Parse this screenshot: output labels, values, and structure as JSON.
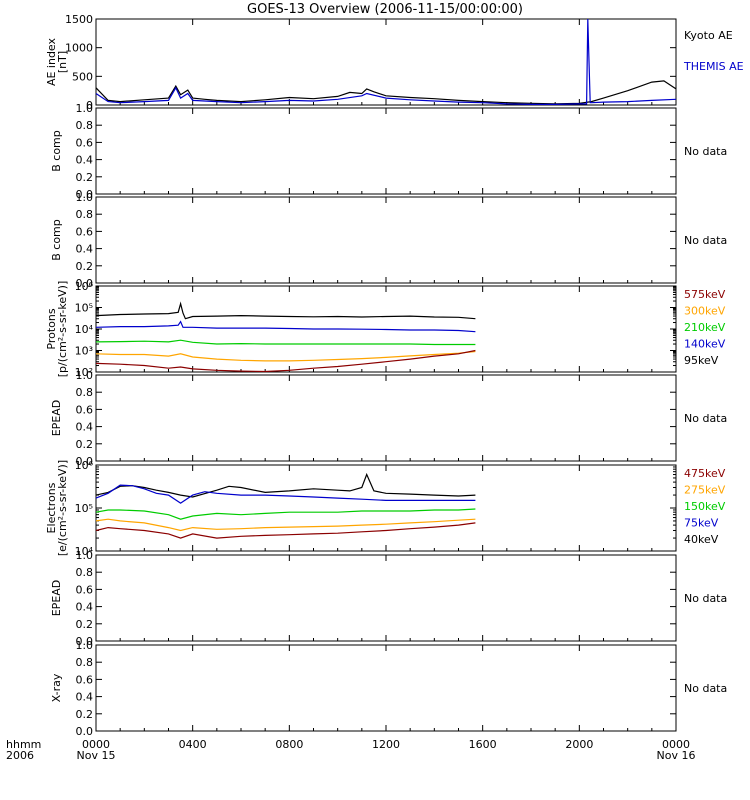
{
  "title": "GOES-13 Overview (2006-11-15/00:00:00)",
  "time_axis": {
    "row1_label": "hhmm",
    "row2_label": "2006",
    "ticks": [
      {
        "hour": 0,
        "label": "0000",
        "sub": "Nov 15"
      },
      {
        "hour": 4,
        "label": "0400",
        "sub": ""
      },
      {
        "hour": 8,
        "label": "0800",
        "sub": ""
      },
      {
        "hour": 12,
        "label": "1200",
        "sub": ""
      },
      {
        "hour": 16,
        "label": "1600",
        "sub": ""
      },
      {
        "hour": 20,
        "label": "2000",
        "sub": ""
      },
      {
        "hour": 24,
        "label": "0000",
        "sub": "Nov 16"
      }
    ]
  },
  "chart_data": [
    {
      "type": "line",
      "ylabel_lines": [
        "AE index",
        "[nT]"
      ],
      "yscale": "linear",
      "ylim": [
        0,
        1500
      ],
      "yticks": [
        "0",
        "500",
        "1000",
        "1500"
      ],
      "ytick_values": [
        0,
        500,
        1000,
        1500
      ],
      "status": "",
      "series": [
        {
          "name": "Kyoto AE",
          "color": "#000000",
          "x": [
            0,
            0.5,
            1,
            2,
            3,
            3.3,
            3.5,
            3.8,
            4,
            4.5,
            5,
            6,
            7,
            8,
            9,
            10,
            10.5,
            11,
            11.2,
            11.5,
            12,
            13,
            14,
            15,
            16,
            17,
            18,
            19,
            20,
            20.5,
            21,
            22,
            23,
            23.5,
            24
          ],
          "y": [
            300,
            80,
            60,
            90,
            120,
            330,
            180,
            260,
            120,
            100,
            80,
            60,
            90,
            130,
            110,
            150,
            220,
            200,
            280,
            230,
            160,
            130,
            110,
            80,
            60,
            40,
            30,
            20,
            30,
            60,
            120,
            250,
            400,
            420,
            280
          ]
        },
        {
          "name": "THEMIS AE",
          "color": "#0000cc",
          "x": [
            0,
            0.5,
            1,
            2,
            3,
            3.3,
            3.5,
            3.8,
            4,
            5,
            6,
            7,
            8,
            9,
            10,
            11,
            11.2,
            12,
            13,
            14,
            15,
            16,
            17,
            18,
            19,
            20,
            20.3,
            20.35,
            20.4,
            20.45,
            20.5,
            21,
            22,
            23,
            24
          ],
          "y": [
            200,
            60,
            40,
            60,
            80,
            300,
            120,
            200,
            80,
            60,
            40,
            60,
            80,
            70,
            100,
            160,
            200,
            120,
            90,
            70,
            50,
            40,
            20,
            10,
            10,
            20,
            20,
            1500,
            760,
            40,
            40,
            50,
            60,
            80,
            100
          ]
        }
      ]
    },
    {
      "type": "line",
      "ylabel_lines": [
        "B comp"
      ],
      "yscale": "linear",
      "ylim": [
        0,
        1
      ],
      "yticks": [
        "0.0",
        "0.2",
        "0.4",
        "0.6",
        "0.8",
        "1.0"
      ],
      "ytick_values": [
        0,
        0.2,
        0.4,
        0.6,
        0.8,
        1.0
      ],
      "status": "No data",
      "series": []
    },
    {
      "type": "line",
      "ylabel_lines": [
        "B comp"
      ],
      "yscale": "linear",
      "ylim": [
        0,
        1
      ],
      "yticks": [
        "0.0",
        "0.2",
        "0.4",
        "0.6",
        "0.8",
        "1.0"
      ],
      "ytick_values": [
        0,
        0.2,
        0.4,
        0.6,
        0.8,
        1.0
      ],
      "status": "No data",
      "series": []
    },
    {
      "type": "line",
      "ylabel_lines": [
        "Protons",
        "[p/(cm²-s-sr-keV)]"
      ],
      "yscale": "log",
      "ylim": [
        100,
        1000000
      ],
      "yticks": [
        "10²",
        "10³",
        "10⁴",
        "10⁵",
        "10⁶"
      ],
      "ytick_values": [
        100,
        1000,
        10000,
        100000,
        1000000
      ],
      "status": "",
      "series": [
        {
          "name": "95keV",
          "color": "#000000",
          "x": [
            0,
            1,
            2,
            3,
            3.4,
            3.5,
            3.6,
            3.7,
            4,
            5,
            6,
            7,
            8,
            9,
            10,
            11,
            12,
            13,
            14,
            15,
            15.7
          ],
          "y": [
            42000,
            47000,
            50000,
            52000,
            60000,
            150000,
            55000,
            30000,
            38000,
            40000,
            42000,
            40000,
            38000,
            37000,
            38000,
            36000,
            38000,
            40000,
            36000,
            35000,
            30000
          ]
        },
        {
          "name": "140keV",
          "color": "#0000cc",
          "x": [
            0,
            1,
            2,
            3,
            3.4,
            3.5,
            3.6,
            4,
            5,
            6,
            7,
            8,
            9,
            10,
            11,
            12,
            13,
            14,
            15,
            15.7
          ],
          "y": [
            12000,
            13000,
            13000,
            14000,
            15000,
            22000,
            12000,
            12000,
            11000,
            11000,
            11000,
            10500,
            10000,
            10000,
            9800,
            9500,
            9000,
            9000,
            8500,
            7500
          ]
        },
        {
          "name": "210keV",
          "color": "#00cc00",
          "x": [
            0,
            1,
            2,
            3,
            3.5,
            4,
            5,
            6,
            7,
            8,
            9,
            10,
            11,
            12,
            13,
            14,
            15,
            15.7
          ],
          "y": [
            2500,
            2600,
            2700,
            2500,
            3000,
            2400,
            2000,
            2100,
            2000,
            2000,
            2000,
            2000,
            2000,
            2000,
            2000,
            1900,
            1900,
            1900
          ]
        },
        {
          "name": "300keV",
          "color": "#ffa500",
          "x": [
            0,
            1,
            2,
            3,
            3.5,
            4,
            5,
            6,
            7,
            8,
            9,
            10,
            11,
            12,
            13,
            14,
            15,
            15.7
          ],
          "y": [
            700,
            650,
            650,
            550,
            700,
            500,
            400,
            350,
            330,
            330,
            350,
            380,
            420,
            480,
            560,
            650,
            750,
            900
          ]
        },
        {
          "name": "575keV",
          "color": "#8b0000",
          "x": [
            0,
            1,
            2,
            3,
            3.5,
            4,
            5,
            6,
            7,
            8,
            9,
            10,
            11,
            12,
            13,
            14,
            15,
            15.7
          ],
          "y": [
            250,
            230,
            200,
            150,
            170,
            140,
            120,
            110,
            105,
            120,
            150,
            180,
            230,
            300,
            400,
            550,
            700,
            1000
          ]
        }
      ]
    },
    {
      "type": "line",
      "ylabel_lines": [
        "EPEAD"
      ],
      "yscale": "linear",
      "ylim": [
        0,
        1
      ],
      "yticks": [
        "0.0",
        "0.2",
        "0.4",
        "0.6",
        "0.8",
        "1.0"
      ],
      "ytick_values": [
        0,
        0.2,
        0.4,
        0.6,
        0.8,
        1.0
      ],
      "status": "No data",
      "series": []
    },
    {
      "type": "line",
      "ylabel_lines": [
        "Electrons",
        "[e/(cm²-s-sr-keV)]"
      ],
      "yscale": "log",
      "ylim": [
        10000,
        1000000
      ],
      "yticks": [
        "10⁴",
        "10⁵",
        "10⁶"
      ],
      "ytick_values": [
        10000,
        100000,
        1000000
      ],
      "status": "",
      "series": [
        {
          "name": "40keV",
          "color": "#000000",
          "x": [
            0,
            0.5,
            1,
            1.5,
            2,
            2.5,
            3,
            3.5,
            4,
            5,
            5.5,
            6,
            7,
            8,
            9,
            10,
            10.5,
            11,
            11.2,
            11.5,
            12,
            13,
            14,
            15,
            15.7
          ],
          "y": [
            200000,
            230000,
            320000,
            330000,
            300000,
            260000,
            230000,
            200000,
            180000,
            260000,
            320000,
            300000,
            230000,
            250000,
            280000,
            260000,
            250000,
            300000,
            600000,
            250000,
            220000,
            210000,
            200000,
            190000,
            200000
          ]
        },
        {
          "name": "75keV",
          "color": "#0000cc",
          "x": [
            0,
            0.5,
            1,
            1.5,
            2,
            2.5,
            3,
            3.5,
            4,
            4.5,
            5,
            6,
            7,
            8,
            9,
            10,
            11,
            12,
            13,
            14,
            15,
            15.7
          ],
          "y": [
            170000,
            220000,
            340000,
            330000,
            280000,
            220000,
            200000,
            130000,
            200000,
            240000,
            220000,
            200000,
            200000,
            190000,
            180000,
            170000,
            160000,
            150000,
            150000,
            150000,
            150000,
            150000
          ]
        },
        {
          "name": "150keV",
          "color": "#00cc00",
          "x": [
            0,
            0.5,
            1,
            2,
            3,
            3.5,
            4,
            5,
            6,
            7,
            8,
            9,
            10,
            11,
            12,
            13,
            14,
            15,
            15.7
          ],
          "y": [
            80000,
            90000,
            90000,
            85000,
            70000,
            55000,
            65000,
            75000,
            70000,
            75000,
            80000,
            80000,
            80000,
            85000,
            85000,
            85000,
            90000,
            90000,
            95000
          ]
        },
        {
          "name": "275keV",
          "color": "#ffa500",
          "x": [
            0,
            0.5,
            1,
            2,
            3,
            3.5,
            4,
            5,
            6,
            7,
            8,
            9,
            10,
            11,
            12,
            13,
            14,
            15,
            15.7
          ],
          "y": [
            50000,
            55000,
            50000,
            45000,
            35000,
            30000,
            35000,
            32000,
            33000,
            35000,
            36000,
            37000,
            38000,
            40000,
            42000,
            45000,
            48000,
            52000,
            55000
          ]
        },
        {
          "name": "475keV",
          "color": "#8b0000",
          "x": [
            0,
            0.5,
            1,
            2,
            3,
            3.5,
            4,
            5,
            6,
            7,
            8,
            9,
            10,
            11,
            12,
            13,
            14,
            15,
            15.7
          ],
          "y": [
            30000,
            35000,
            33000,
            30000,
            25000,
            20000,
            25000,
            20000,
            22000,
            23000,
            24000,
            25000,
            26000,
            28000,
            30000,
            33000,
            36000,
            40000,
            45000
          ]
        }
      ]
    },
    {
      "type": "line",
      "ylabel_lines": [
        "EPEAD"
      ],
      "yscale": "linear",
      "ylim": [
        0,
        1
      ],
      "yticks": [
        "0.0",
        "0.2",
        "0.4",
        "0.6",
        "0.8",
        "1.0"
      ],
      "ytick_values": [
        0,
        0.2,
        0.4,
        0.6,
        0.8,
        1.0
      ],
      "status": "No data",
      "series": []
    },
    {
      "type": "line",
      "ylabel_lines": [
        "X-ray"
      ],
      "yscale": "linear",
      "ylim": [
        0,
        1
      ],
      "yticks": [
        "0.0",
        "0.2",
        "0.4",
        "0.6",
        "0.8",
        "1.0"
      ],
      "ytick_values": [
        0,
        0.2,
        0.4,
        0.6,
        0.8,
        1.0
      ],
      "status": "No data",
      "series": []
    }
  ],
  "legends": [
    [
      "Kyoto AE",
      "THEMIS AE"
    ],
    [],
    [],
    [
      "575keV",
      "300keV",
      "210keV",
      "140keV",
      "95keV"
    ],
    [],
    [
      "475keV",
      "275keV",
      "150keV",
      "75keV",
      "40keV"
    ],
    [],
    []
  ],
  "legend_colors": [
    [
      "#000000",
      "#0000cc"
    ],
    [],
    [],
    [
      "#8b0000",
      "#ffa500",
      "#00cc00",
      "#0000cc",
      "#000000"
    ],
    [],
    [
      "#8b0000",
      "#ffa500",
      "#00cc00",
      "#0000cc",
      "#000000"
    ],
    [],
    []
  ]
}
